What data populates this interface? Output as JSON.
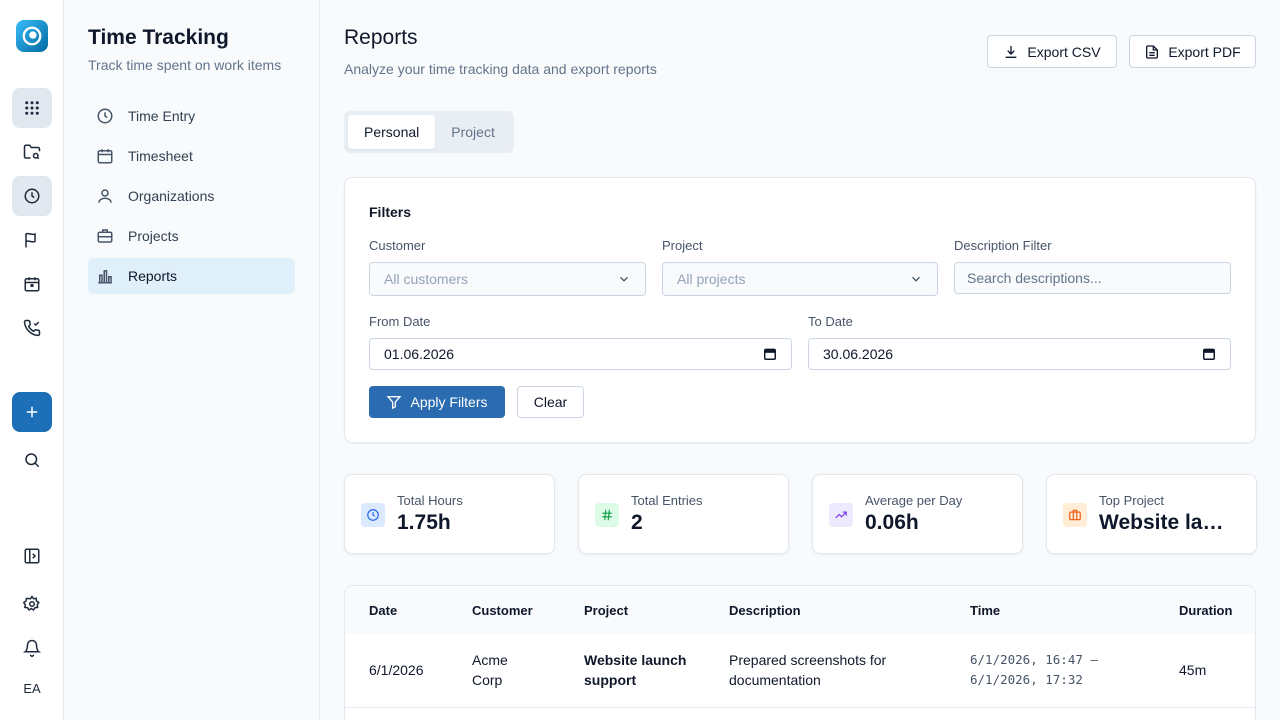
{
  "rail": {
    "user_initials": "EA"
  },
  "sidebar": {
    "title": "Time Tracking",
    "subtitle": "Track time spent on work items",
    "items": [
      {
        "label": "Time Entry",
        "icon": "clock-icon"
      },
      {
        "label": "Timesheet",
        "icon": "calendar-icon"
      },
      {
        "label": "Organizations",
        "icon": "user-icon"
      },
      {
        "label": "Projects",
        "icon": "briefcase-icon"
      },
      {
        "label": "Reports",
        "icon": "bar-chart-icon",
        "active": true
      }
    ]
  },
  "header": {
    "title": "Reports",
    "subtitle": "Analyze your time tracking data and export reports",
    "export_csv": "Export CSV",
    "export_pdf": "Export PDF"
  },
  "tabs": [
    {
      "label": "Personal",
      "active": true
    },
    {
      "label": "Project",
      "active": false
    }
  ],
  "filters": {
    "title": "Filters",
    "customer_label": "Customer",
    "customer_value": "All customers",
    "project_label": "Project",
    "project_value": "All projects",
    "description_label": "Description Filter",
    "description_placeholder": "Search descriptions...",
    "from_label": "From Date",
    "from_value": "01.06.2026",
    "to_label": "To Date",
    "to_value": "30.06.2026",
    "apply_label": "Apply Filters",
    "clear_label": "Clear"
  },
  "stats": [
    {
      "label": "Total Hours",
      "value": "1.75h",
      "icon": "clock-icon",
      "color": "#2563eb",
      "bg": "#dbeafe"
    },
    {
      "label": "Total Entries",
      "value": "2",
      "icon": "hash-icon",
      "color": "#16a34a",
      "bg": "#dcfce7"
    },
    {
      "label": "Average per Day",
      "value": "0.06h",
      "icon": "trending-up-icon",
      "color": "#7c3aed",
      "bg": "#ede9fe"
    },
    {
      "label": "Top Project",
      "value": "Website launch support",
      "icon": "briefcase-icon",
      "color": "#ea580c",
      "bg": "#ffedd5"
    }
  ],
  "table": {
    "columns": [
      "Date",
      "Customer",
      "Project",
      "Description",
      "Time",
      "Duration"
    ],
    "rows": [
      {
        "date": "6/1/2026",
        "customer_line1": "Acme",
        "customer_line2": "Corp",
        "project_line1": "Website launch",
        "project_line2": "support",
        "description_line1": "Prepared screenshots for",
        "description_line2": "documentation",
        "time_line1": "6/1/2026, 16:47 —",
        "time_line2": "6/1/2026, 17:32",
        "duration": "45m"
      }
    ]
  }
}
